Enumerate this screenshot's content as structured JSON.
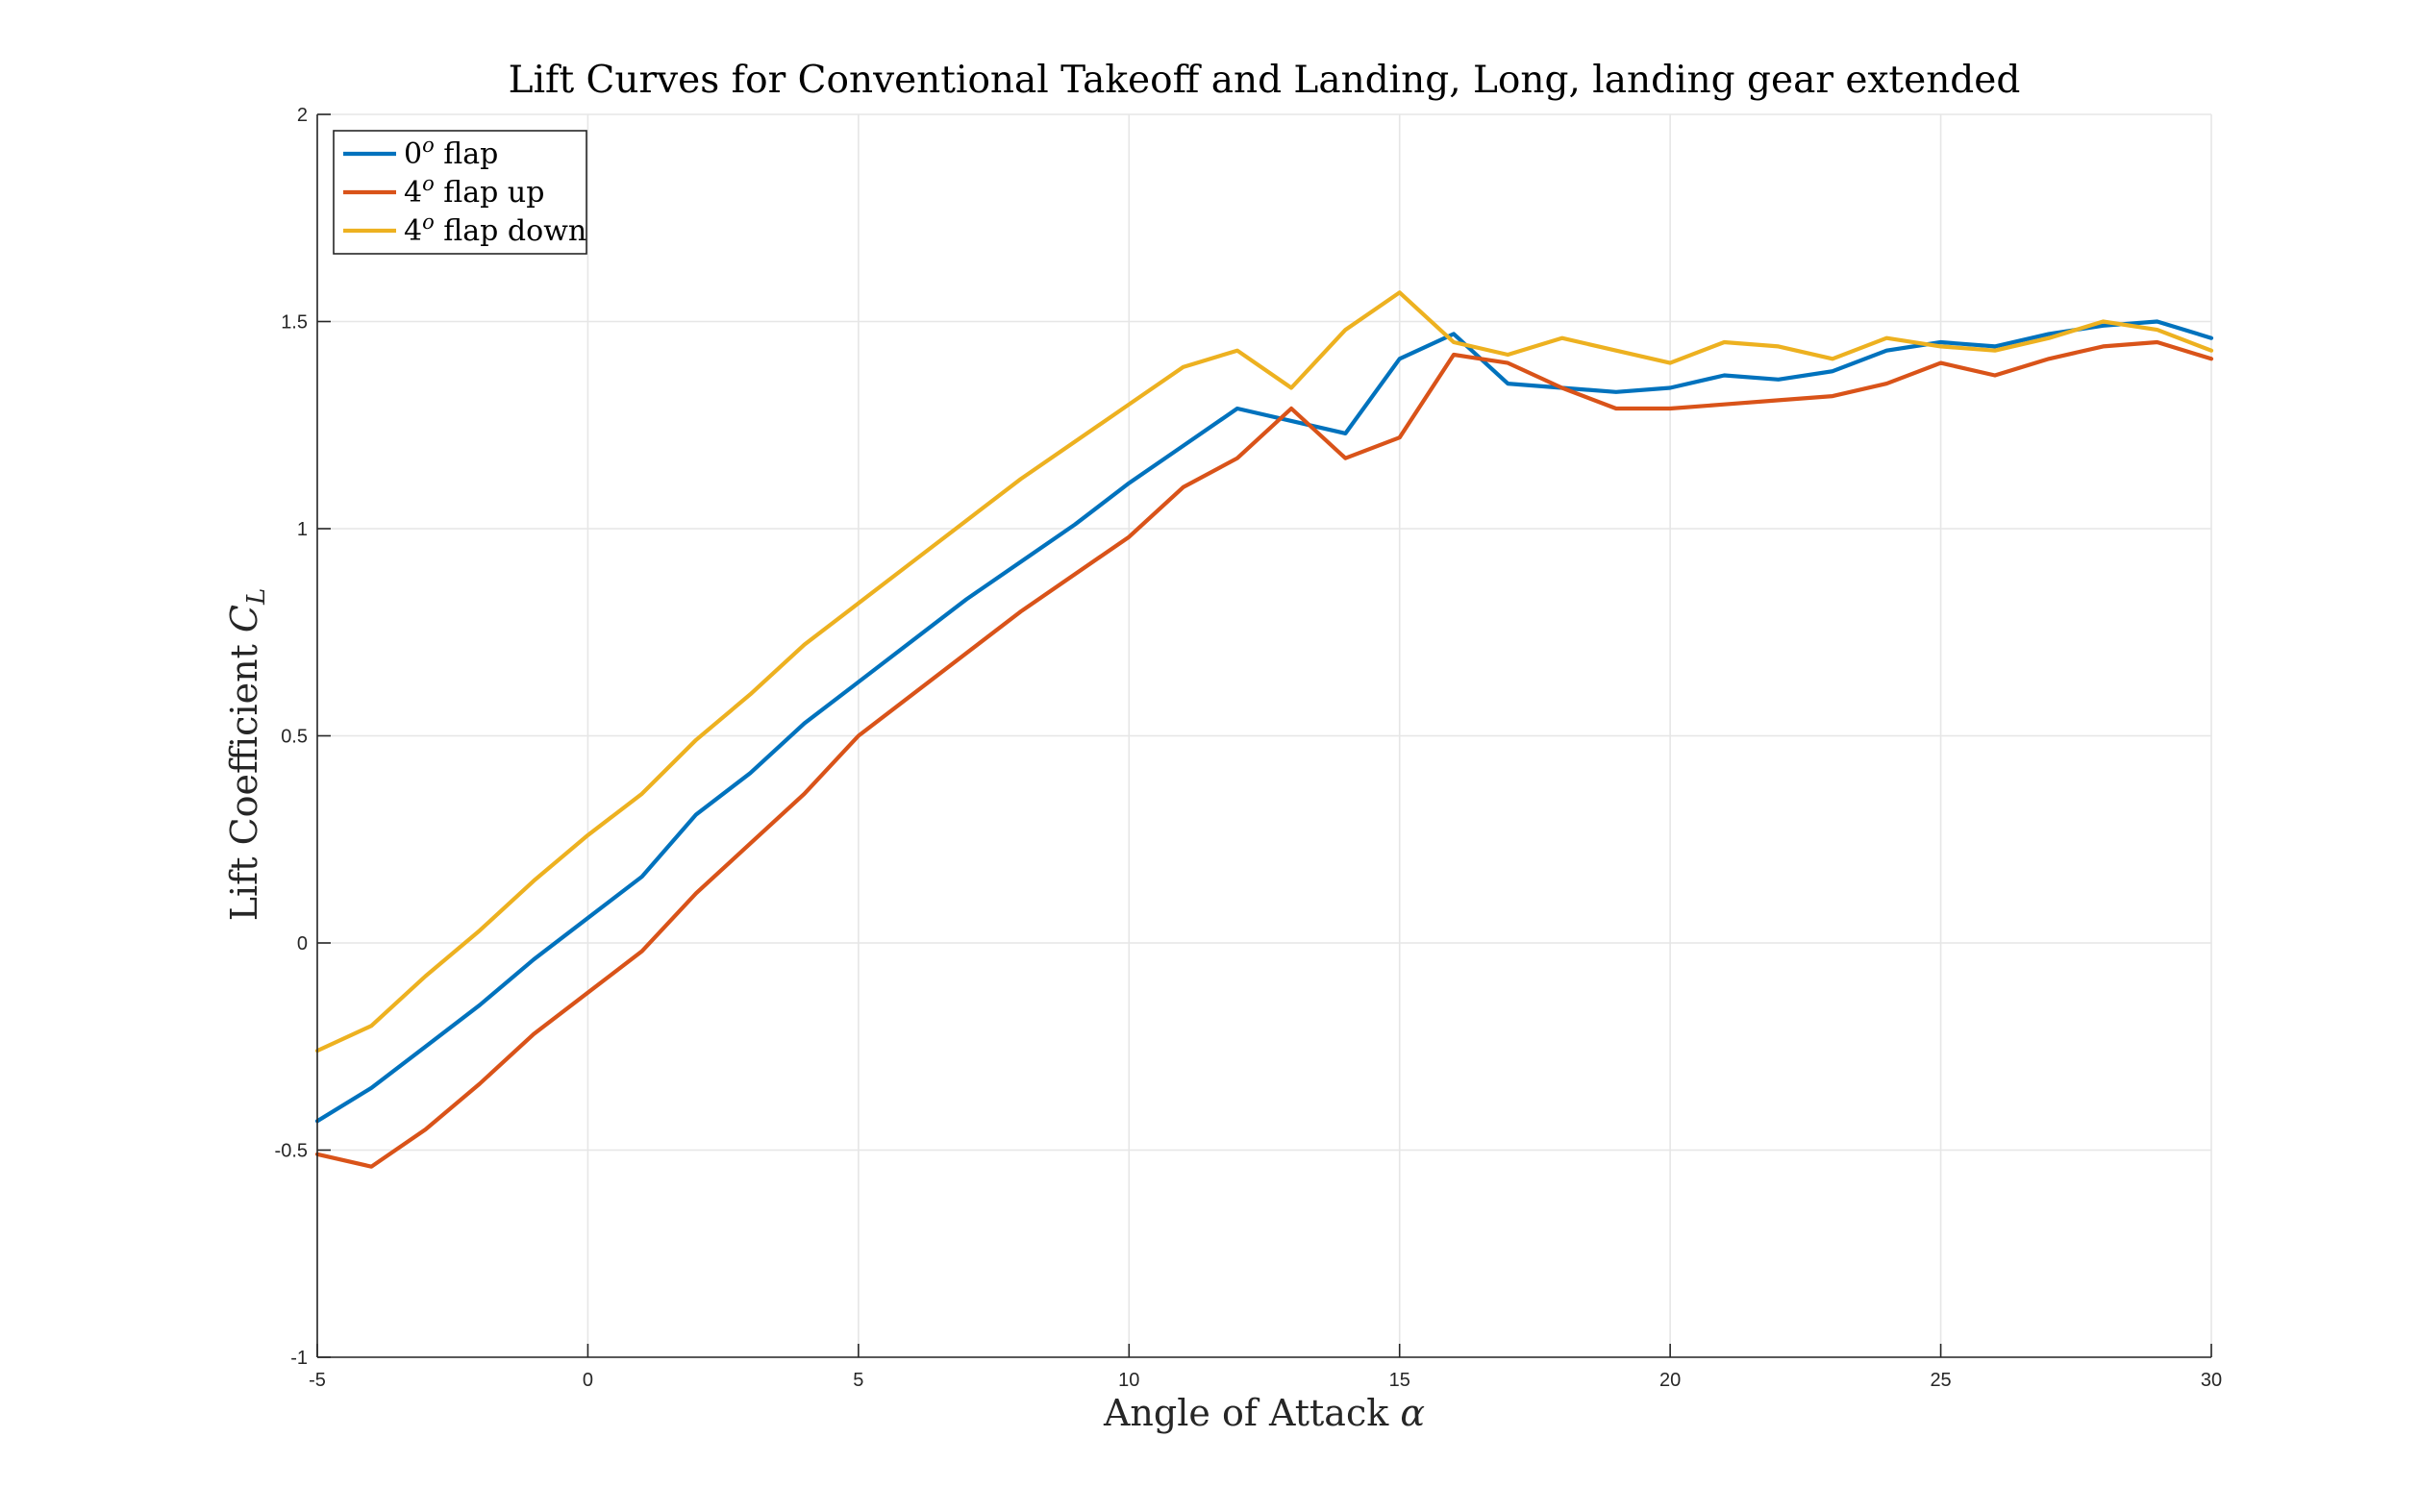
{
  "chart_data": {
    "type": "line",
    "title": "Lift Curves for Conventional Takeoff and Landing, Long, landing gear extended",
    "xlabel": "Angle of Attack α",
    "ylabel_main": "Lift Coefficient ",
    "ylabel_symbol": "C",
    "ylabel_sub": "L",
    "xlim": [
      -5,
      30
    ],
    "ylim": [
      -1,
      2
    ],
    "xticks": [
      -5,
      0,
      5,
      10,
      15,
      20,
      25,
      30
    ],
    "yticks": [
      -1,
      -0.5,
      0,
      0.5,
      1,
      1.5,
      2
    ],
    "xtick_labels": [
      "-5",
      "0",
      "5",
      "10",
      "15",
      "20",
      "25",
      "30"
    ],
    "ytick_labels": [
      "-1",
      "-0.5",
      "0",
      "0.5",
      "1",
      "1.5",
      "2"
    ],
    "grid": true,
    "legend_position": "top-left",
    "x": [
      -5,
      -4,
      -3,
      -2,
      -1,
      0,
      1,
      2,
      3,
      4,
      5,
      6,
      7,
      8,
      9,
      10,
      11,
      12,
      13,
      14,
      15,
      16,
      17,
      18,
      19,
      20,
      21,
      22,
      23,
      24,
      25,
      26,
      27,
      28,
      29,
      30
    ],
    "series": [
      {
        "name": "0° flap",
        "legend_base": "0",
        "legend_sup": "o",
        "legend_rest": " flap",
        "color": "#0072BD",
        "values": [
          -0.43,
          -0.35,
          -0.25,
          -0.15,
          -0.04,
          0.06,
          0.16,
          0.31,
          0.41,
          0.53,
          0.63,
          0.73,
          0.83,
          0.92,
          1.01,
          1.11,
          1.2,
          1.29,
          1.26,
          1.23,
          1.41,
          1.47,
          1.35,
          1.34,
          1.33,
          1.34,
          1.37,
          1.36,
          1.38,
          1.43,
          1.45,
          1.44,
          1.47,
          1.49,
          1.5,
          1.46
        ]
      },
      {
        "name": "4° flap up",
        "legend_base": "4",
        "legend_sup": "o",
        "legend_rest": " flap up",
        "color": "#D95319",
        "values": [
          -0.51,
          -0.54,
          -0.45,
          -0.34,
          -0.22,
          -0.12,
          -0.02,
          0.12,
          0.24,
          0.36,
          0.5,
          0.6,
          0.7,
          0.8,
          0.89,
          0.98,
          1.1,
          1.17,
          1.29,
          1.17,
          1.22,
          1.42,
          1.4,
          1.34,
          1.29,
          1.29,
          1.3,
          1.31,
          1.32,
          1.35,
          1.4,
          1.37,
          1.41,
          1.44,
          1.45,
          1.41
        ]
      },
      {
        "name": "4° flap down",
        "legend_base": "4",
        "legend_sup": "o",
        "legend_rest": " flap down",
        "color": "#EDB120",
        "values": [
          -0.26,
          -0.2,
          -0.08,
          0.03,
          0.15,
          0.26,
          0.36,
          0.49,
          0.6,
          0.72,
          0.82,
          0.92,
          1.02,
          1.12,
          1.21,
          1.3,
          1.39,
          1.43,
          1.34,
          1.48,
          1.57,
          1.45,
          1.42,
          1.46,
          1.43,
          1.4,
          1.45,
          1.44,
          1.41,
          1.46,
          1.44,
          1.43,
          1.46,
          1.5,
          1.48,
          1.43
        ]
      }
    ]
  }
}
